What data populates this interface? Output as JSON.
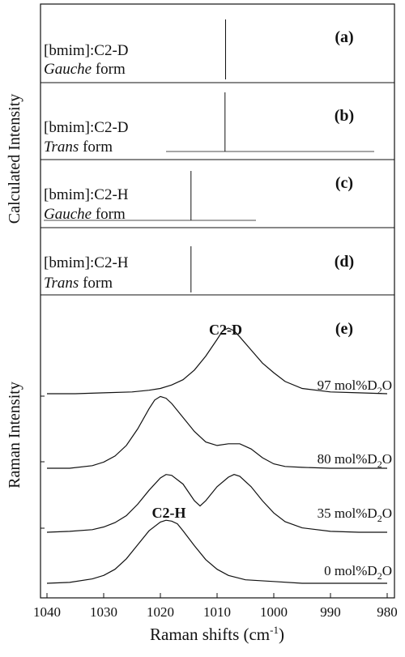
{
  "chart_data": [
    {
      "type": "bar",
      "panel": "(a)",
      "label_line1": "[bmim]:C2-D",
      "label_line2_italic": "Gauche",
      "label_line2_rest": " form",
      "peak_x": 1008.5,
      "peak_relative_height": 1.0
    },
    {
      "type": "bar",
      "panel": "(b)",
      "label_line1": "[bmim]:C2-D",
      "label_line2_italic": "Trans",
      "label_line2_rest": " form",
      "peak_x": 1008.6,
      "peak_relative_height": 1.0
    },
    {
      "type": "bar",
      "panel": "(c)",
      "label_line1": "[bmim]:C2-H",
      "label_line2_italic": "Gauche",
      "label_line2_rest": " form",
      "peak_x": 1014.6,
      "peak_relative_height": 1.0
    },
    {
      "type": "bar",
      "panel": "(d)",
      "label_line1": "[bmim]:C2-H",
      "label_line2_italic": "Trans",
      "label_line2_rest": " form",
      "peak_x": 1014.6,
      "peak_relative_height": 1.0
    },
    {
      "type": "line",
      "panel": "(e)",
      "xlim": [
        1040,
        980
      ],
      "xticks": [
        1040,
        1030,
        1020,
        1010,
        1000,
        990,
        980
      ],
      "xlabel_main": "Raman shifts (cm",
      "xlabel_sup": "-1",
      "xlabel_close": ")",
      "ylabel": "Raman Intensity",
      "peak_annotations": [
        {
          "text": "C2-D",
          "x": 1008.5
        },
        {
          "text": "C2-H",
          "x": 1018.5
        }
      ],
      "series": [
        {
          "name": "97 mol%D2O",
          "label_main": "97 mol%D",
          "label_sub": "2",
          "label_end": "O",
          "x": [
            1040,
            1035,
            1030,
            1025,
            1022,
            1020,
            1018,
            1016,
            1014,
            1012,
            1010,
            1009,
            1008,
            1007,
            1006,
            1004,
            1002,
            1000,
            998,
            995,
            990,
            985,
            980
          ],
          "y": [
            0.0,
            0.0,
            0.01,
            0.02,
            0.04,
            0.06,
            0.1,
            0.16,
            0.27,
            0.43,
            0.62,
            0.72,
            0.75,
            0.72,
            0.65,
            0.5,
            0.35,
            0.24,
            0.14,
            0.06,
            0.02,
            0.01,
            0.0
          ]
        },
        {
          "name": "80 mol%D2O",
          "label_main": "80 mol%D",
          "label_sub": "2",
          "label_end": "O",
          "x": [
            1040,
            1036,
            1032,
            1030,
            1028,
            1026,
            1024,
            1022,
            1021,
            1020,
            1019,
            1018,
            1016,
            1014,
            1012,
            1010,
            1008,
            1006,
            1004,
            1002,
            1000,
            998,
            995,
            990,
            985,
            980
          ],
          "y": [
            0.0,
            0.0,
            0.03,
            0.07,
            0.14,
            0.26,
            0.45,
            0.68,
            0.78,
            0.82,
            0.8,
            0.74,
            0.58,
            0.42,
            0.3,
            0.26,
            0.28,
            0.28,
            0.22,
            0.12,
            0.05,
            0.02,
            0.01,
            0.0,
            0.0,
            0.0
          ]
        },
        {
          "name": "35 mol%D2O",
          "label_main": "35 mol%D",
          "label_sub": "2",
          "label_end": "O",
          "x": [
            1040,
            1036,
            1032,
            1030,
            1028,
            1026,
            1024,
            1022,
            1020,
            1019,
            1018,
            1016,
            1014,
            1013,
            1012,
            1010,
            1008,
            1007,
            1006,
            1004,
            1002,
            1000,
            998,
            995,
            990,
            985,
            980
          ],
          "y": [
            0.0,
            0.01,
            0.03,
            0.06,
            0.11,
            0.19,
            0.32,
            0.48,
            0.62,
            0.66,
            0.65,
            0.55,
            0.36,
            0.3,
            0.36,
            0.52,
            0.63,
            0.66,
            0.64,
            0.52,
            0.36,
            0.22,
            0.12,
            0.05,
            0.01,
            0.0,
            0.0
          ]
        },
        {
          "name": "0 mol%D2O",
          "label_main": "0 mol%D",
          "label_sub": "2",
          "label_end": "O",
          "x": [
            1040,
            1036,
            1032,
            1030,
            1028,
            1026,
            1024,
            1022,
            1020,
            1019,
            1018,
            1017,
            1016,
            1014,
            1012,
            1010,
            1008,
            1005,
            1000,
            995,
            990,
            985,
            980
          ],
          "y": [
            0.0,
            0.01,
            0.05,
            0.09,
            0.16,
            0.28,
            0.44,
            0.6,
            0.7,
            0.72,
            0.71,
            0.68,
            0.6,
            0.43,
            0.27,
            0.16,
            0.09,
            0.04,
            0.02,
            0.0,
            0.0,
            0.0,
            0.0
          ]
        }
      ]
    }
  ],
  "figure": {
    "upper_ylabel": "Calculated Intensity"
  }
}
